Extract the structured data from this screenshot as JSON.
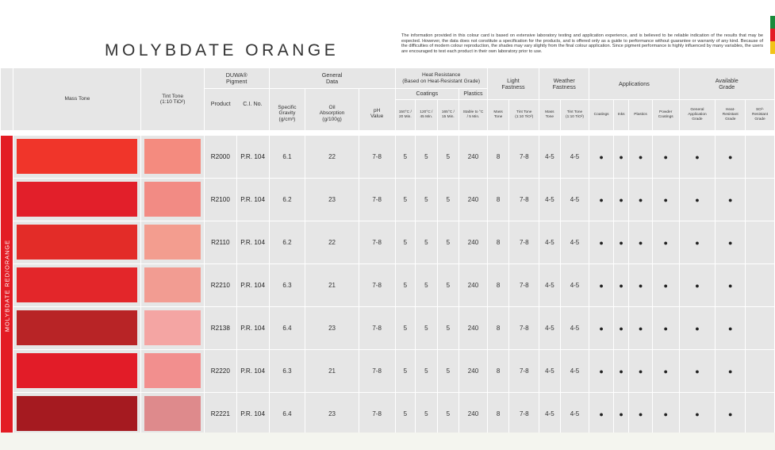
{
  "title": "MOLYBDATE ORANGE",
  "disclaimer": "The information provided in this colour card is based on extensive laboratory testing and application experience, and is believed to be reliable indication of the results that may be expected. However, the data does not constitute a specification for the products, and is offered only as a guide to performance without guarantee or warranty of any kind. Because of the difficulties of modern colour reproduction, the shades may vary slightly from the final colour application. Since pigment performance is highly influenced by many variables, the users are encouraged to test each product in their own laboratory prior to use.",
  "flag_colors": [
    "#1a8a3a",
    "#e31c24",
    "#f2c318"
  ],
  "side_label": "MOLYBDATE RED/ORANGE",
  "side_color": "#e31c24",
  "headers": {
    "mass_tone": "Mass Tone",
    "tint_tone": "Tint Tone\n(1:10 TiO²)",
    "duwa": "DUWA®\nPigment",
    "general": "General\nData",
    "heat": "Heat Resistance\n(Based on Heat-Resistant Grade)",
    "light": "Light\nFastness",
    "weather": "Weather\nFastness",
    "applications": "Applications",
    "available": "Available\nGrade",
    "coatings": "Coatings",
    "plastics": "Plastics",
    "product": "Product",
    "ci_no": "C.I. No.",
    "specific_gravity": "Specific\nGravity\n(g/cm³)",
    "oil_absorption": "Oil\nAbsorption\n(g/100g)",
    "ph": "pH\nValue",
    "h150": "150°C /\n20 Min.",
    "h120": "120°C /\n45 Min.",
    "h165": "165°C /\n15 Min.",
    "stable": "Stable to °C\n/ 5 Min.",
    "lf_mass": "Mass\nTone",
    "lf_tint": "Tint Tone\n(1:10 TiO²)",
    "wf_mass": "Mass\nTone",
    "wf_tint": "Tint Tone\n(1:10 TiO²)",
    "app_coatings": "Coatings",
    "app_inks": "Inks",
    "app_plastics": "Plastics",
    "app_powder": "Powder\nCoatings",
    "grade_general": "General\nApplication\nGrade",
    "grade_heat": "Heat-\nResistant\nGrade",
    "grade_so2": "SO²-\nResistant\nGrade"
  },
  "rows": [
    {
      "mass": "#f0352a",
      "tint": "#f48b7f",
      "product": "R2000",
      "ci": "P.R. 104",
      "sg": "6.1",
      "oil": "22",
      "ph": "7-8",
      "h150": "5",
      "h120": "5",
      "h165": "5",
      "stable": "240",
      "lfm": "8",
      "lft": "7-8",
      "wfm": "4-5",
      "wft": "4-5",
      "a1": "●",
      "a2": "●",
      "a3": "●",
      "a4": "●",
      "g1": "●",
      "g2": "●",
      "g3": ""
    },
    {
      "mass": "#e21f2a",
      "tint": "#f28b84",
      "product": "R2100",
      "ci": "P.R. 104",
      "sg": "6.2",
      "oil": "23",
      "ph": "7-8",
      "h150": "5",
      "h120": "5",
      "h165": "5",
      "stable": "240",
      "lfm": "8",
      "lft": "7-8",
      "wfm": "4-5",
      "wft": "4-5",
      "a1": "●",
      "a2": "●",
      "a3": "●",
      "a4": "●",
      "g1": "●",
      "g2": "●",
      "g3": ""
    },
    {
      "mass": "#e32c28",
      "tint": "#f39d8f",
      "product": "R2110",
      "ci": "P.R. 104",
      "sg": "6.2",
      "oil": "22",
      "ph": "7-8",
      "h150": "5",
      "h120": "5",
      "h165": "5",
      "stable": "240",
      "lfm": "8",
      "lft": "7-8",
      "wfm": "4-5",
      "wft": "4-5",
      "a1": "●",
      "a2": "●",
      "a3": "●",
      "a4": "●",
      "g1": "●",
      "g2": "●",
      "g3": ""
    },
    {
      "mass": "#e3262a",
      "tint": "#f29c92",
      "product": "R2210",
      "ci": "P.R. 104",
      "sg": "6.3",
      "oil": "21",
      "ph": "7-8",
      "h150": "5",
      "h120": "5",
      "h165": "5",
      "stable": "240",
      "lfm": "8",
      "lft": "7-8",
      "wfm": "4-5",
      "wft": "4-5",
      "a1": "●",
      "a2": "●",
      "a3": "●",
      "a4": "●",
      "g1": "●",
      "g2": "●",
      "g3": ""
    },
    {
      "mass": "#b82426",
      "tint": "#f4a5a3",
      "product": "R2138",
      "ci": "P.R. 104",
      "sg": "6.4",
      "oil": "23",
      "ph": "7-8",
      "h150": "5",
      "h120": "5",
      "h165": "5",
      "stable": "240",
      "lfm": "8",
      "lft": "7-8",
      "wfm": "4-5",
      "wft": "4-5",
      "a1": "●",
      "a2": "●",
      "a3": "●",
      "a4": "●",
      "g1": "●",
      "g2": "●",
      "g3": ""
    },
    {
      "mass": "#e21c28",
      "tint": "#f28f8e",
      "product": "R2220",
      "ci": "P.R. 104",
      "sg": "6.3",
      "oil": "21",
      "ph": "7-8",
      "h150": "5",
      "h120": "5",
      "h165": "5",
      "stable": "240",
      "lfm": "8",
      "lft": "7-8",
      "wfm": "4-5",
      "wft": "4-5",
      "a1": "●",
      "a2": "●",
      "a3": "●",
      "a4": "●",
      "g1": "●",
      "g2": "●",
      "g3": ""
    },
    {
      "mass": "#a51a20",
      "tint": "#de8a8c",
      "product": "R2221",
      "ci": "P.R. 104",
      "sg": "6.4",
      "oil": "23",
      "ph": "7-8",
      "h150": "5",
      "h120": "5",
      "h165": "5",
      "stable": "240",
      "lfm": "8",
      "lft": "7-8",
      "wfm": "4-5",
      "wft": "4-5",
      "a1": "●",
      "a2": "●",
      "a3": "●",
      "a4": "●",
      "g1": "●",
      "g2": "●",
      "g3": ""
    }
  ]
}
